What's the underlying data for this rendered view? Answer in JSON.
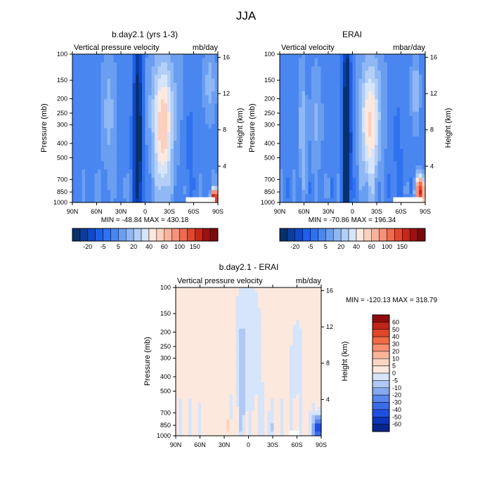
{
  "figure": {
    "title": "JJA"
  },
  "palettes": {
    "abs": [
      "#08306b",
      "#0a3d9c",
      "#1048c8",
      "#1f5ee8",
      "#2f72f0",
      "#4a86f0",
      "#6a9ef0",
      "#8fb8f4",
      "#b4cff6",
      "#d6e5fa",
      "#fde8de",
      "#fcd0be",
      "#fbb39c",
      "#f7917a",
      "#ef6a4f",
      "#e0472f",
      "#c5281a",
      "#9e1012",
      "#7a0a0c"
    ],
    "diff": [
      "#08258c",
      "#0a35b8",
      "#1e4fe0",
      "#3a6ce8",
      "#5a86ec",
      "#86a8f0",
      "#b0c8f5",
      "#d6e5fa",
      "#fde8de",
      "#fcd5c2",
      "#fbb49a",
      "#f89070",
      "#f06a45",
      "#e0472a",
      "#c0241a",
      "#900a0c"
    ]
  },
  "chart_data": [
    {
      "type": "heatmap",
      "title": "b.day2.1 (yrs 1-3)",
      "left_label": "Vertical pressure velocity",
      "right_label": "mb/day",
      "ylabel": "Pressure (mb)",
      "y2label": "Height (km)",
      "x_ticks": [
        "90N",
        "60N",
        "30N",
        "0",
        "30S",
        "60S",
        "90S"
      ],
      "y_ticks": [
        "100",
        "150",
        "200",
        "250",
        "300",
        "400",
        "500",
        "700",
        "850",
        "1000"
      ],
      "y2_ticks": [
        "16",
        "12",
        "8",
        "4"
      ],
      "stats": "MIN = -48.84   MAX = 430.18",
      "colorbar_labels": [
        "-20",
        "-5",
        "5",
        "20",
        "40",
        "60",
        "100",
        "150"
      ]
    },
    {
      "type": "heatmap",
      "title": "ERAI",
      "left_label": "Vertical velocity",
      "right_label": "mbar/day",
      "ylabel": "Pressure (mb)",
      "y2label": "Height (km)",
      "x_ticks": [
        "90N",
        "60N",
        "30N",
        "0",
        "30S",
        "60S",
        "90S"
      ],
      "y_ticks": [
        "100",
        "150",
        "200",
        "250",
        "300",
        "400",
        "500",
        "700",
        "850",
        "1000"
      ],
      "y2_ticks": [
        "16",
        "12",
        "8",
        "4"
      ],
      "stats": "MIN = -70.86   MAX = 196.34",
      "colorbar_labels": [
        "-20",
        "-5",
        "5",
        "20",
        "40",
        "60",
        "100",
        "150"
      ]
    },
    {
      "type": "heatmap",
      "title": "b.day2.1 - ERAI",
      "left_label": "Vertical pressure velocity",
      "right_label": "mb/day",
      "ylabel": "Pressure (mb)",
      "y2label": "Height (km)",
      "x_ticks": [
        "90N",
        "60N",
        "30N",
        "0",
        "30S",
        "60S",
        "90S"
      ],
      "y_ticks": [
        "100",
        "150",
        "200",
        "250",
        "300",
        "400",
        "500",
        "700",
        "850",
        "1000"
      ],
      "y2_ticks": [
        "16",
        "12",
        "8",
        "4"
      ],
      "stats": "MIN = -120.13   MAX = 318.79",
      "colorbar_labels": [
        "60",
        "50",
        "40",
        "30",
        "20",
        "10",
        "5",
        "0",
        "-5",
        "-10",
        "-20",
        "-30",
        "-40",
        "-50",
        "-60"
      ]
    }
  ]
}
